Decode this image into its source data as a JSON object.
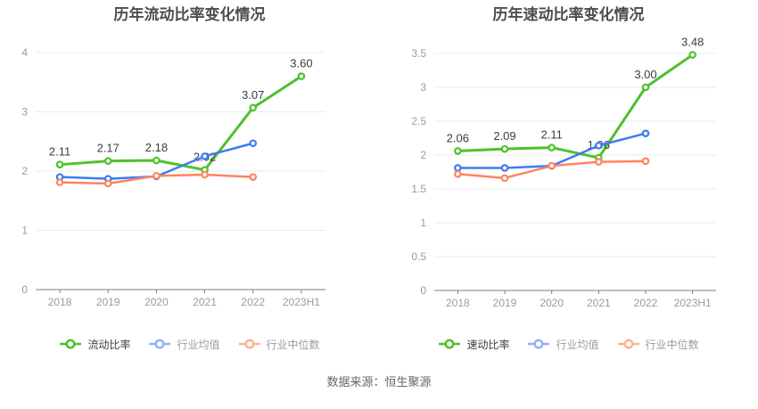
{
  "page": {
    "footer_source": "数据来源：恒生聚源"
  },
  "colors": {
    "green": "#4fc12b",
    "blue": "#3e7bf2",
    "orange": "#ff8360",
    "legend_blue": "#8fb3f5",
    "legend_orange": "#ffb296",
    "grid": "#e5ecf3",
    "axis": "#7d7d7d",
    "tick_label": "#9b9b9b",
    "data_label": "#3c3c3c",
    "legend_text_primary": "#404040",
    "legend_text_secondary": "#9b9b9b"
  },
  "chart_data": [
    {
      "type": "line",
      "title": "历年流动比率变化情况",
      "categories": [
        "2018",
        "2019",
        "2020",
        "2021",
        "2022",
        "2023H1"
      ],
      "ylim": [
        0,
        4
      ],
      "y_ticks": [
        0,
        1,
        2,
        3,
        4
      ],
      "grid": true,
      "legend_position": "bottom",
      "series": [
        {
          "name": "流动比率",
          "color_key": "green",
          "values": [
            2.11,
            2.17,
            2.18,
            2.02,
            3.07,
            3.6
          ],
          "data_labels": [
            "2.11",
            "2.17",
            "2.18",
            "2.02",
            "3.07",
            "3.60"
          ]
        },
        {
          "name": "行业均值",
          "color_key": "blue",
          "legend_color_key": "legend_blue",
          "values": [
            1.9,
            1.87,
            1.91,
            2.25,
            2.47,
            null
          ]
        },
        {
          "name": "行业中位数",
          "color_key": "orange",
          "legend_color_key": "legend_orange",
          "values": [
            1.81,
            1.79,
            1.92,
            1.94,
            1.9,
            null
          ]
        }
      ]
    },
    {
      "type": "line",
      "title": "历年速动比率变化情况",
      "categories": [
        "2018",
        "2019",
        "2020",
        "2021",
        "2022",
        "2023H1"
      ],
      "ylim": [
        0,
        3.5
      ],
      "y_ticks": [
        0,
        0.5,
        1,
        1.5,
        2,
        2.5,
        3,
        3.5
      ],
      "grid": true,
      "legend_position": "bottom",
      "series": [
        {
          "name": "速动比率",
          "color_key": "green",
          "values": [
            2.06,
            2.09,
            2.11,
            1.96,
            3.0,
            3.48
          ],
          "data_labels": [
            "2.06",
            "2.09",
            "2.11",
            "1.96",
            "3.00",
            "3.48"
          ]
        },
        {
          "name": "行业均值",
          "color_key": "blue",
          "legend_color_key": "legend_blue",
          "values": [
            1.81,
            1.81,
            1.84,
            2.14,
            2.32,
            null
          ]
        },
        {
          "name": "行业中位数",
          "color_key": "orange",
          "legend_color_key": "legend_orange",
          "values": [
            1.72,
            1.66,
            1.84,
            1.9,
            1.91,
            null
          ]
        }
      ]
    }
  ]
}
